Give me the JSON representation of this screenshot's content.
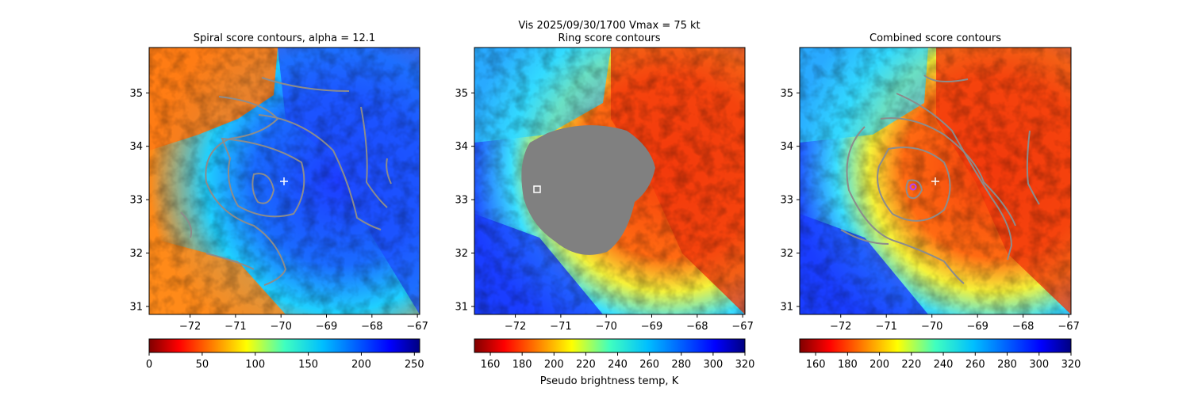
{
  "figure": {
    "suptitle_line1": "Vis  2025/09/30/1700    Vmax = 75 kt",
    "colorbar_label": "Pseudo brightness temp, K"
  },
  "chart_data": [
    {
      "type": "heatmap",
      "title": "Spiral score contours, alpha = 12.1",
      "xlabel": "",
      "ylabel": "",
      "xlim": [
        -72.9,
        -66.95
      ],
      "ylim": [
        30.85,
        35.85
      ],
      "x_ticks": [
        -72,
        -71,
        -70,
        -69,
        -68,
        -67
      ],
      "y_ticks": [
        31,
        32,
        33,
        34,
        35
      ],
      "colormap": "jet",
      "colorbar": {
        "orientation": "horizontal",
        "range": [
          0,
          255
        ],
        "ticks": [
          0,
          50,
          100,
          150,
          200,
          250
        ],
        "label": ""
      },
      "contour_color": "#808080",
      "markers": [
        {
          "kind": "plus",
          "color": "#ffffff",
          "x": -69.9,
          "y": 33.35
        }
      ],
      "grey_region": false
    },
    {
      "type": "heatmap",
      "title": "Ring score contours",
      "xlabel": "",
      "ylabel": "",
      "xlim": [
        -72.9,
        -66.95
      ],
      "ylim": [
        30.85,
        35.85
      ],
      "x_ticks": [
        -72,
        -71,
        -70,
        -69,
        -68,
        -67
      ],
      "y_ticks": [
        31,
        32,
        33,
        34,
        35
      ],
      "colormap": "jet_r",
      "colorbar": {
        "orientation": "horizontal",
        "range": [
          150,
          320
        ],
        "ticks": [
          160,
          180,
          200,
          220,
          240,
          260,
          280,
          300,
          320
        ],
        "label": "Pseudo brightness temp, K"
      },
      "grey_region": true,
      "markers": [
        {
          "kind": "square",
          "color": "#ffffff",
          "x": -71.55,
          "y": 33.2
        }
      ]
    },
    {
      "type": "heatmap",
      "title": "Combined score contours",
      "xlabel": "",
      "ylabel": "",
      "xlim": [
        -72.9,
        -66.95
      ],
      "ylim": [
        30.85,
        35.85
      ],
      "x_ticks": [
        -72,
        -71,
        -70,
        -69,
        -68,
        -67
      ],
      "y_ticks": [
        31,
        32,
        33,
        34,
        35
      ],
      "colormap": "jet_r",
      "colorbar": {
        "orientation": "horizontal",
        "range": [
          150,
          320
        ],
        "ticks": [
          160,
          180,
          200,
          220,
          240,
          260,
          280,
          300,
          320
        ],
        "label": ""
      },
      "contour_color": "#808080",
      "markers": [
        {
          "kind": "plus",
          "color": "#ffffff",
          "x": -69.9,
          "y": 33.35
        },
        {
          "kind": "circle",
          "color": "#b040ff",
          "x": -70.35,
          "y": 33.25
        }
      ],
      "grey_region": false
    }
  ]
}
